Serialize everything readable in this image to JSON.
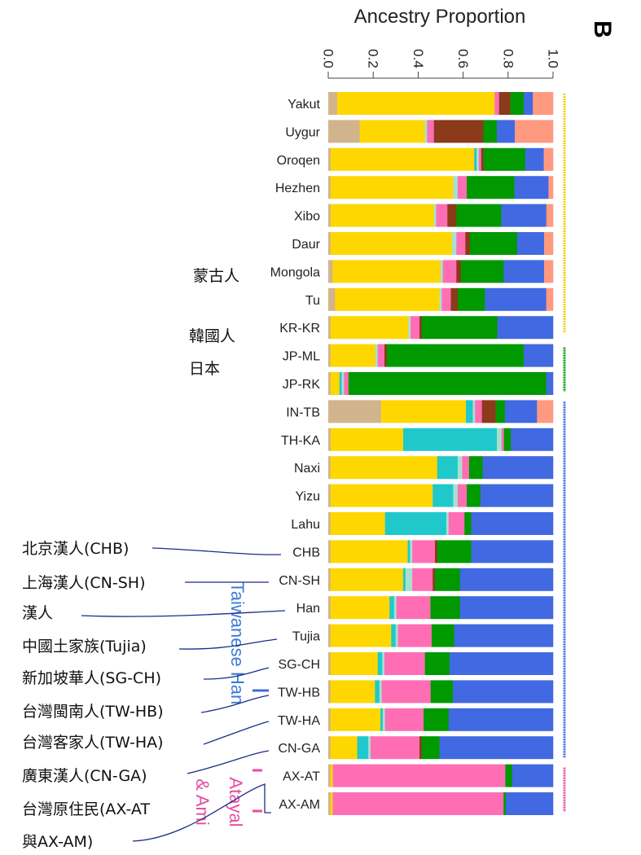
{
  "chart_data": {
    "type": "bar",
    "orientation": "horizontal-stacked",
    "title": "Ancestry Proportion",
    "panel_label": "B",
    "xlim": [
      0,
      1
    ],
    "x_ticks": [
      "0.0",
      "0.2",
      "0.4",
      "0.6",
      "0.8",
      "1.0"
    ],
    "component_colors": [
      "#d2b48c",
      "#ffd700",
      "#20c8cc",
      "#a8e0d0",
      "#ff6eb4",
      "#8b3a1a",
      "#009900",
      "#4169e1",
      "#ff9980"
    ],
    "categories": [
      "Yakut",
      "Uygur",
      "Oroqen",
      "Hezhen",
      "Xibo",
      "Daur",
      "Mongola",
      "Tu",
      "KR-KR",
      "JP-ML",
      "JP-RK",
      "IN-TB",
      "TH-KA",
      "Naxi",
      "Yizu",
      "Lahu",
      "CHB",
      "CN-SH",
      "Han",
      "Tujia",
      "SG-CH",
      "TW-HB",
      "TW-HA",
      "CN-GA",
      "AX-AT",
      "AX-AM"
    ],
    "proportions": [
      [
        0.04,
        0.7,
        0.0,
        0.0,
        0.02,
        0.05,
        0.06,
        0.04,
        0.09
      ],
      [
        0.14,
        0.29,
        0.0,
        0.01,
        0.03,
        0.22,
        0.06,
        0.08,
        0.17
      ],
      [
        0.01,
        0.62,
        0.01,
        0.01,
        0.01,
        0.01,
        0.18,
        0.08,
        0.04
      ],
      [
        0.01,
        0.54,
        0.0,
        0.02,
        0.04,
        0.0,
        0.21,
        0.15,
        0.02
      ],
      [
        0.01,
        0.46,
        0.0,
        0.01,
        0.05,
        0.04,
        0.2,
        0.2,
        0.03
      ],
      [
        0.01,
        0.54,
        0.0,
        0.02,
        0.04,
        0.02,
        0.21,
        0.12,
        0.04
      ],
      [
        0.02,
        0.48,
        0.0,
        0.01,
        0.06,
        0.02,
        0.19,
        0.18,
        0.04
      ],
      [
        0.03,
        0.46,
        0.0,
        0.01,
        0.04,
        0.03,
        0.12,
        0.27,
        0.03
      ],
      [
        0.01,
        0.35,
        0.0,
        0.01,
        0.04,
        0.01,
        0.34,
        0.25,
        0.0
      ],
      [
        0.01,
        0.2,
        0.0,
        0.01,
        0.03,
        0.01,
        0.61,
        0.13,
        0.0
      ],
      [
        0.01,
        0.04,
        0.01,
        0.01,
        0.02,
        0.0,
        0.88,
        0.03,
        0.0
      ],
      [
        0.23,
        0.37,
        0.03,
        0.01,
        0.03,
        0.06,
        0.04,
        0.14,
        0.07
      ],
      [
        0.01,
        0.31,
        0.4,
        0.02,
        0.01,
        0.0,
        0.03,
        0.18,
        0.0
      ],
      [
        0.01,
        0.47,
        0.09,
        0.02,
        0.03,
        0.0,
        0.06,
        0.31,
        0.0
      ],
      [
        0.01,
        0.45,
        0.09,
        0.02,
        0.04,
        0.0,
        0.06,
        0.32,
        0.0
      ],
      [
        0.01,
        0.24,
        0.27,
        0.01,
        0.07,
        0.0,
        0.03,
        0.36,
        0.0
      ],
      [
        0.01,
        0.34,
        0.01,
        0.01,
        0.1,
        0.01,
        0.15,
        0.36,
        0.0
      ],
      [
        0.01,
        0.32,
        0.01,
        0.03,
        0.09,
        0.01,
        0.11,
        0.41,
        0.0
      ],
      [
        0.01,
        0.26,
        0.02,
        0.01,
        0.15,
        0.0,
        0.13,
        0.41,
        0.0
      ],
      [
        0.01,
        0.27,
        0.02,
        0.01,
        0.15,
        0.0,
        0.1,
        0.44,
        0.0
      ],
      [
        0.01,
        0.21,
        0.02,
        0.01,
        0.18,
        0.0,
        0.11,
        0.46,
        0.0
      ],
      [
        0.01,
        0.2,
        0.02,
        0.01,
        0.22,
        0.0,
        0.1,
        0.45,
        0.0
      ],
      [
        0.01,
        0.22,
        0.01,
        0.01,
        0.17,
        0.0,
        0.11,
        0.46,
        0.0
      ],
      [
        0.01,
        0.12,
        0.05,
        0.01,
        0.22,
        0.01,
        0.08,
        0.51,
        0.0
      ],
      [
        0.01,
        0.01,
        0.0,
        0.0,
        0.76,
        0.0,
        0.03,
        0.18,
        0.0
      ],
      [
        0.01,
        0.01,
        0.0,
        0.0,
        0.76,
        0.0,
        0.01,
        0.21,
        0.0
      ]
    ],
    "groups": [
      {
        "label": "Taiwanese Han",
        "color": "#3a7bd5"
      },
      {
        "label": "Atayal",
        "color": "#e64ea0"
      },
      {
        "label": "& Ami",
        "color": "#e64ea0"
      }
    ]
  },
  "annotations": [
    {
      "text": "蒙古人",
      "target": "Mongola"
    },
    {
      "text": "韓國人",
      "target": "KR-KR"
    },
    {
      "text": "日本",
      "target": "JP-ML"
    },
    {
      "text": "北京漢人(CHB)",
      "target": "CHB"
    },
    {
      "text": "上海漢人(CN-SH)",
      "target": "CN-SH"
    },
    {
      "text": "漢人",
      "target": "Han"
    },
    {
      "text": "中國土家族(Tujia)",
      "target": "Tujia"
    },
    {
      "text": "新加坡華人(SG-CH)",
      "target": "SG-CH"
    },
    {
      "text": "台灣閩南人(TW-HB)",
      "target": "TW-HB"
    },
    {
      "text": "台灣客家人(TW-HA)",
      "target": "TW-HA"
    },
    {
      "text": "廣東漢人(CN-GA)",
      "target": "CN-GA"
    },
    {
      "text": "台灣原住民(AX-AT",
      "target": "AX-AT"
    },
    {
      "text": "與AX-AM)",
      "target": "AX-AM"
    }
  ]
}
